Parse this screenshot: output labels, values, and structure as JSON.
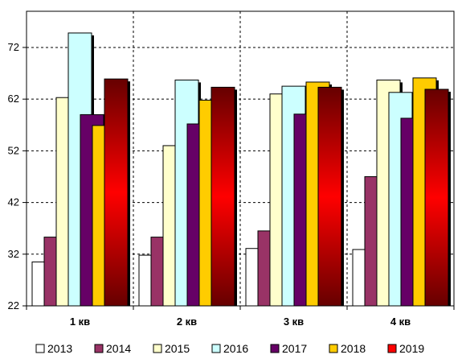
{
  "chart_data": {
    "type": "bar",
    "title": "",
    "xlabel": "",
    "ylabel": "",
    "categories": [
      "1 кв",
      "2 кв",
      "3 кв",
      "4 кв"
    ],
    "yticks": [
      "22",
      "32",
      "42",
      "52",
      "62",
      "72"
    ],
    "ylim": [
      22,
      79
    ],
    "grid": true,
    "legend_position": "bottom",
    "series": [
      {
        "name": "2013",
        "color": "#ffffff",
        "values": [
          30.5,
          31.8,
          33.1,
          32.9
        ]
      },
      {
        "name": "2014",
        "color": "#993366",
        "values": [
          35.3,
          35.3,
          36.5,
          47.0
        ]
      },
      {
        "name": "2015",
        "color": "#ffffcc",
        "values": [
          62.3,
          53.0,
          63.0,
          65.7
        ]
      },
      {
        "name": "2016",
        "color": "#ccffff",
        "values": [
          74.8,
          65.7,
          64.5,
          63.3
        ]
      },
      {
        "name": "2017",
        "color": "#660066",
        "values": [
          59.0,
          57.2,
          59.1,
          58.3
        ]
      },
      {
        "name": "2018",
        "color": "#ffcc00",
        "values": [
          56.9,
          61.8,
          65.3,
          66.1
        ]
      },
      {
        "name": "2019",
        "color": "red-gradient",
        "values": [
          65.9,
          64.3,
          64.3,
          63.9
        ]
      }
    ]
  }
}
